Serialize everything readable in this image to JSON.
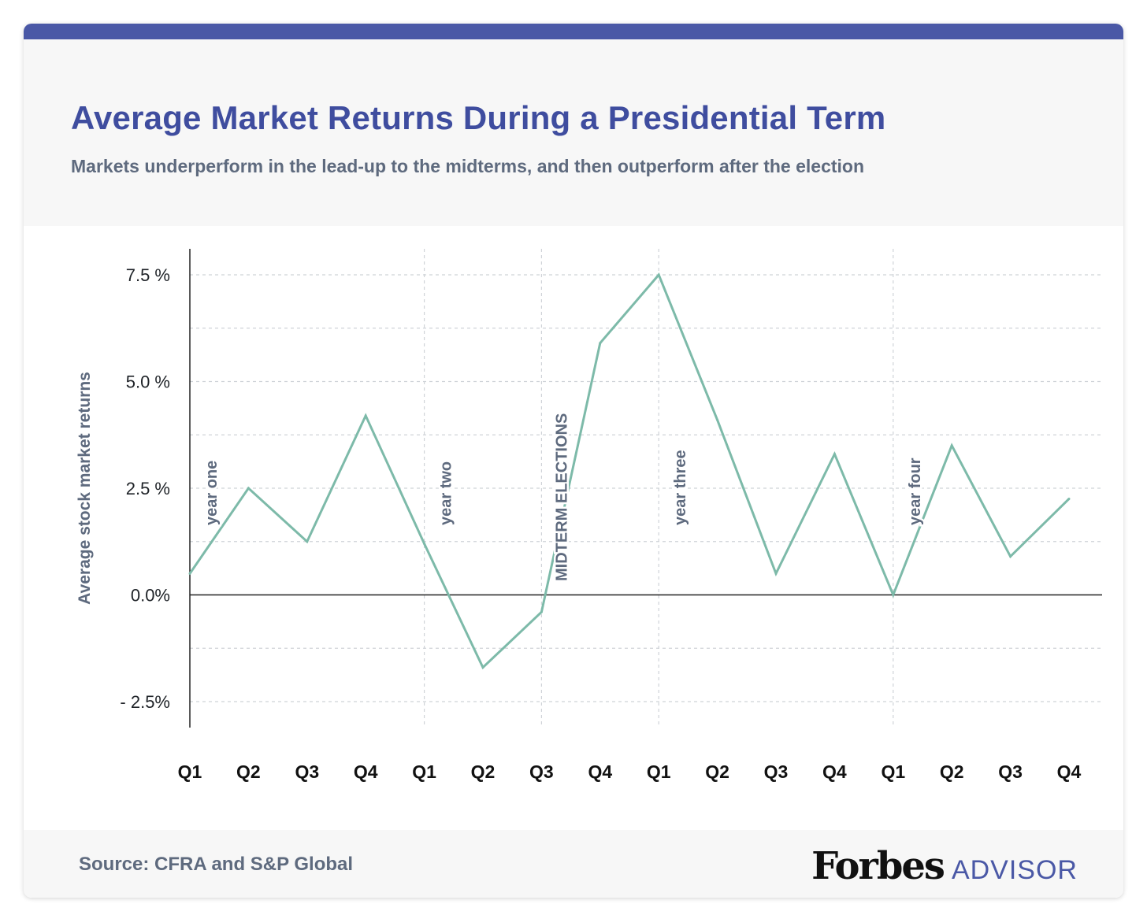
{
  "header": {
    "title": "Average Market Returns During a Presidential Term",
    "subtitle": "Markets underperform in the lead-up to the midterms, and then outperform after the election"
  },
  "footer": {
    "source": "Source: CFRA and S&P Global",
    "logo_main": "Forbes",
    "logo_sub": "ADVISOR"
  },
  "colors": {
    "title": "#3f4d9f",
    "line": "#7dbaa9",
    "text": "#5e6a7e",
    "accent_bar": "#4a58a6"
  },
  "chart_data": {
    "type": "line",
    "title": "Average Market Returns During a Presidential Term",
    "subtitle": "Markets underperform in the lead-up to the midterms, and then outperform after the election",
    "ylabel": "Average stock market returns",
    "xlabel": "",
    "categories": [
      "Q1",
      "Q2",
      "Q3",
      "Q4",
      "Q1",
      "Q2",
      "Q3",
      "Q4",
      "Q1",
      "Q2",
      "Q3",
      "Q4",
      "Q1",
      "Q2",
      "Q3",
      "Q4"
    ],
    "series": [
      {
        "values": [
          0.5,
          2.5,
          1.25,
          4.2,
          1.2,
          -1.7,
          -0.4,
          5.9,
          7.5,
          4.1,
          0.5,
          3.3,
          0.0,
          3.5,
          0.9,
          2.25
        ]
      }
    ],
    "ylim": [
      -3.1,
      8.2
    ],
    "yticks": [
      {
        "value": 7.5,
        "label": "7.5 %"
      },
      {
        "value": 5.0,
        "label": "5.0 %"
      },
      {
        "value": 2.5,
        "label": "2.5 %"
      },
      {
        "value": 0.0,
        "label": "0.0%"
      },
      {
        "value": -2.5,
        "label": "- 2.5%"
      }
    ],
    "minor_grid": [
      6.25,
      3.75,
      1.25,
      -1.25
    ],
    "annotations": [
      {
        "text": "year one",
        "category_index": 0
      },
      {
        "text": "year two",
        "category_index": 4
      },
      {
        "text": "MIDTERM ELECTIONS",
        "category_index": 6
      },
      {
        "text": "year three",
        "category_index": 8
      },
      {
        "text": "year four",
        "category_index": 12
      }
    ],
    "vertical_lines_at": [
      4,
      6,
      8,
      12
    ],
    "grid": true,
    "legend": "none"
  }
}
